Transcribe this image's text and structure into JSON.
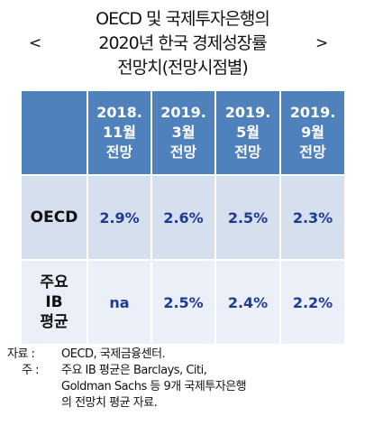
{
  "title": {
    "line1": "OECD 및 국제투자은행의",
    "bracket_left": "<",
    "line2": "2020년 한국 경제성장률",
    "bracket_right": ">",
    "line3": "전망치(전망시점별)"
  },
  "table": {
    "columns": [
      {
        "lines": [
          "2018.",
          "11월",
          "전망"
        ]
      },
      {
        "lines": [
          "2019.",
          "3월",
          "전망"
        ]
      },
      {
        "lines": [
          "2019.",
          "5월",
          "전망"
        ]
      },
      {
        "lines": [
          "2019.",
          "9월",
          "전망"
        ]
      }
    ],
    "rows": [
      {
        "label_lines": [
          "OECD"
        ],
        "values": [
          "2.9%",
          "2.6%",
          "2.5%",
          "2.3%"
        ]
      },
      {
        "label_lines": [
          "주요",
          "IB",
          "평균"
        ],
        "values": [
          "na",
          "2.5%",
          "2.4%",
          "2.2%"
        ]
      }
    ]
  },
  "notes": {
    "source_label": "자료 :",
    "source_text": "OECD, 국제금융센터.",
    "note_label": "주 :",
    "note_lines": [
      "주요 IB 평균은 Barclays, Citi,",
      "Goldman Sachs 등 9개 국제투자은행",
      "의 전망치 평균 자료."
    ]
  },
  "colors": {
    "header_bg": "#4f81bd",
    "row1_bg": "#d6dfee",
    "row2_bg": "#ebf0f8",
    "value_text": "#1f3a93"
  }
}
